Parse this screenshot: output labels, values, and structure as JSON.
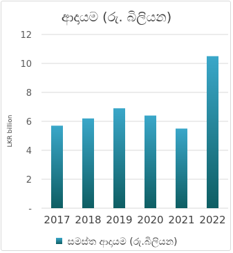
{
  "chart_data": {
    "type": "bar",
    "title": "ආදායම (රු. බිලියන)",
    "ylabel": "LKR billion",
    "xlabel": "",
    "categories": [
      "2017",
      "2018",
      "2019",
      "2020",
      "2021",
      "2022"
    ],
    "series": [
      {
        "name": "සමස්ත ආදායම (රු.බිලියන)",
        "values": [
          5.7,
          6.2,
          6.9,
          6.4,
          5.5,
          10.5
        ]
      }
    ],
    "ylim": [
      0,
      12
    ],
    "yticks": [
      0,
      2,
      4,
      6,
      8,
      10,
      12
    ],
    "ytick_labels": [
      "-",
      "2",
      "4",
      "6",
      "8",
      "10",
      "12"
    ],
    "grid": true,
    "legend_position": "bottom",
    "colors": {
      "bar_top": "#3aa7c9",
      "bar_bottom": "#0e5e63",
      "grid": "#d9d9d9",
      "text": "#404040"
    }
  }
}
